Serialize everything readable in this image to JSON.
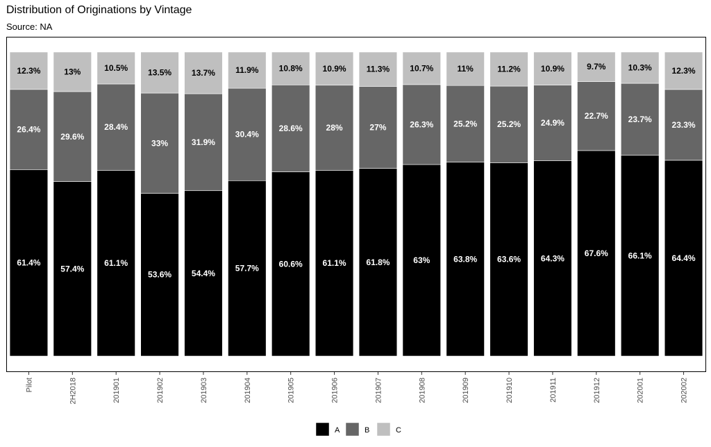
{
  "title": "Distribution of Originations by Vintage",
  "subtitle": "Source: NA",
  "chart_data": {
    "type": "bar",
    "stacked": true,
    "title": "Distribution of Originations by Vintage",
    "subtitle": "Source: NA",
    "xlabel": "",
    "ylabel": "",
    "ylim": [
      0,
      100
    ],
    "grid": false,
    "legend_position": "bottom",
    "categories": [
      "Pilot",
      "2H2018",
      "201901",
      "201902",
      "201903",
      "201904",
      "201905",
      "201906",
      "201907",
      "201908",
      "201909",
      "201910",
      "201911",
      "201912",
      "202001",
      "202002"
    ],
    "series": [
      {
        "name": "A",
        "color": "#000000",
        "values": [
          61.4,
          57.4,
          61.1,
          53.6,
          54.4,
          57.7,
          60.6,
          61.1,
          61.8,
          63,
          63.8,
          63.6,
          64.3,
          67.6,
          66.1,
          64.4
        ],
        "labels": [
          "61.4%",
          "57.4%",
          "61.1%",
          "53.6%",
          "54.4%",
          "57.7%",
          "60.6%",
          "61.1%",
          "61.8%",
          "63%",
          "63.8%",
          "63.6%",
          "64.3%",
          "67.6%",
          "66.1%",
          "64.4%"
        ]
      },
      {
        "name": "B",
        "color": "#666666",
        "values": [
          26.4,
          29.6,
          28.4,
          33,
          31.9,
          30.4,
          28.6,
          28,
          27,
          26.3,
          25.2,
          25.2,
          24.9,
          22.7,
          23.7,
          23.3
        ],
        "labels": [
          "26.4%",
          "29.6%",
          "28.4%",
          "33%",
          "31.9%",
          "30.4%",
          "28.6%",
          "28%",
          "27%",
          "26.3%",
          "25.2%",
          "25.2%",
          "24.9%",
          "22.7%",
          "23.7%",
          "23.3%"
        ]
      },
      {
        "name": "C",
        "color": "#bfbfbf",
        "values": [
          12.3,
          13,
          10.5,
          13.5,
          13.7,
          11.9,
          10.8,
          10.9,
          11.3,
          10.7,
          11,
          11.2,
          10.9,
          9.7,
          10.3,
          12.3
        ],
        "labels": [
          "12.3%",
          "13%",
          "10.5%",
          "13.5%",
          "13.7%",
          "11.9%",
          "10.8%",
          "10.9%",
          "11.3%",
          "10.7%",
          "11%",
          "11.2%",
          "10.9%",
          "9.7%",
          "10.3%",
          "12.3%"
        ]
      }
    ]
  }
}
